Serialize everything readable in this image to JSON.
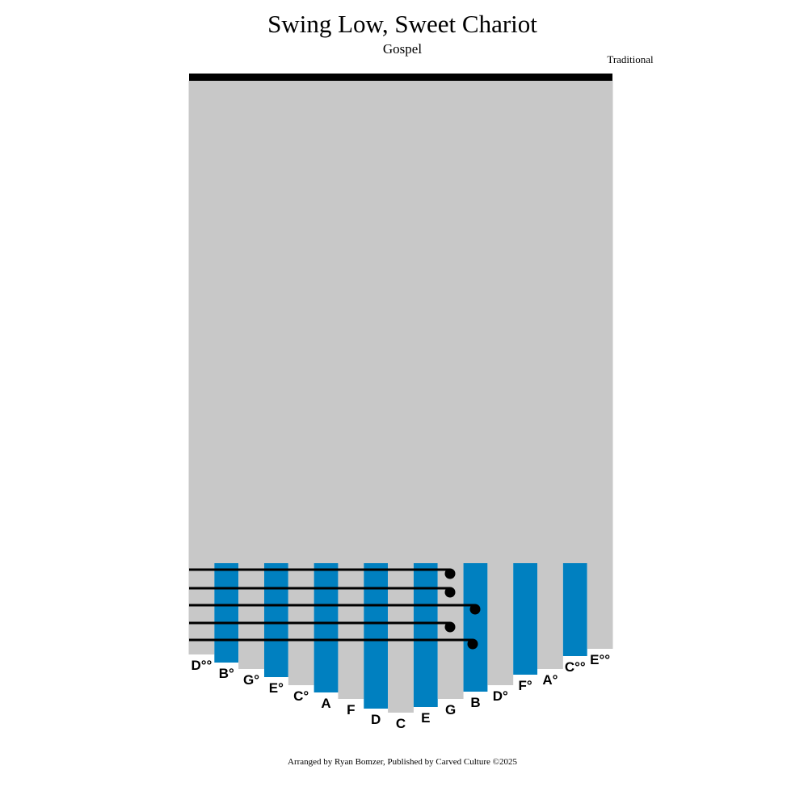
{
  "header": {
    "title": "Swing Low, Sweet Chariot",
    "subtitle": "Gospel",
    "composer": "Traditional"
  },
  "tines": [
    {
      "label": "D°°"
    },
    {
      "label": "B°"
    },
    {
      "label": "G°"
    },
    {
      "label": "E°"
    },
    {
      "label": "C°"
    },
    {
      "label": "A"
    },
    {
      "label": "F"
    },
    {
      "label": "D"
    },
    {
      "label": "C"
    },
    {
      "label": "E"
    },
    {
      "label": "G"
    },
    {
      "label": "B"
    },
    {
      "label": "D°"
    },
    {
      "label": "F°"
    },
    {
      "label": "A°"
    },
    {
      "label": "C°°"
    },
    {
      "label": "E°°"
    }
  ],
  "footer": "Arranged by Ryan Bomzer, Published by Carved Culture ©2025"
}
